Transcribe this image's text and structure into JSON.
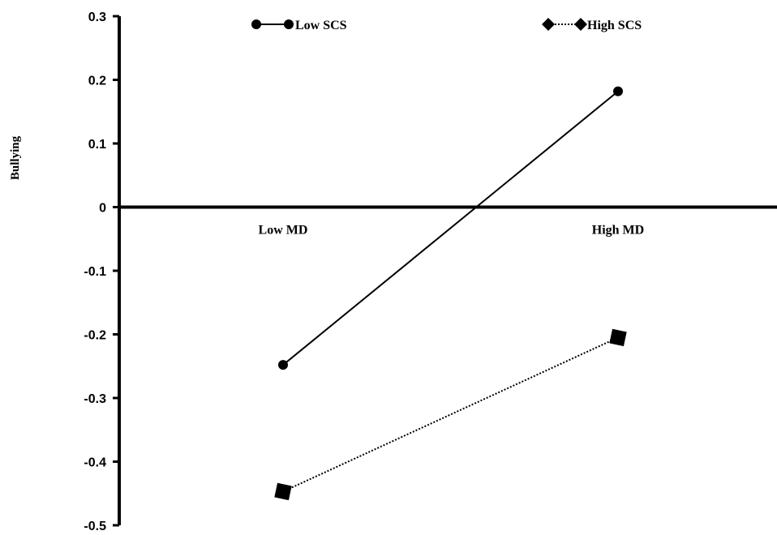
{
  "chart_data": {
    "type": "line",
    "title": "",
    "xlabel": "",
    "ylabel": "Bullying",
    "categories": [
      "Low MD",
      "High MD"
    ],
    "ylim": [
      -0.5,
      0.3
    ],
    "yticks": [
      0.3,
      0.2,
      0.1,
      0,
      -0.1,
      -0.2,
      -0.3,
      -0.4,
      -0.5
    ],
    "ytick_labels": [
      "0.3",
      "0.2",
      "0.1",
      "0",
      "-0.1",
      "-0.2",
      "-0.3",
      "-0.4",
      "-0.5"
    ],
    "grid": false,
    "legend_position": "top",
    "series": [
      {
        "name": "Low SCS",
        "values": [
          -0.248,
          0.182
        ],
        "marker": "circle",
        "line_style": "solid",
        "color": "#000000"
      },
      {
        "name": "High SCS",
        "values": [
          -0.447,
          -0.205
        ],
        "marker": "diamond",
        "line_style": "dotted",
        "color": "#000000"
      }
    ]
  }
}
